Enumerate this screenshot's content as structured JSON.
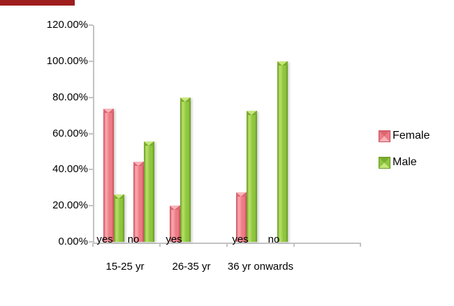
{
  "chart_data": {
    "type": "bar",
    "title": "",
    "y_axis": {
      "tick_labels": [
        "120.00%",
        "100.00%",
        "80.00%",
        "60.00%",
        "40.00%",
        "20.00%",
        "0.00%"
      ],
      "min": 0,
      "max": 120,
      "step": 20,
      "format": "percent"
    },
    "x_axis": {
      "sub_tick_labels": [
        "yes",
        "no",
        "yes",
        "yes",
        "no"
      ],
      "group_labels": [
        "15-25 yr",
        "26-35 yr",
        "36 yr onwards"
      ],
      "empty_trailing_slot": true
    },
    "series": [
      {
        "name": "Female",
        "color": "#ec7b86",
        "values": [
          73.7,
          44.4,
          20.0,
          27.3,
          0.0
        ]
      },
      {
        "name": "Male",
        "color": "#8ec63f",
        "values": [
          26.3,
          55.6,
          80.0,
          72.7,
          100.0
        ]
      }
    ],
    "legend_position": "right",
    "gridlines": false,
    "bar_style": "3d-beveled-column"
  },
  "decor": {
    "top_strip_color": "#9e1d1d"
  }
}
